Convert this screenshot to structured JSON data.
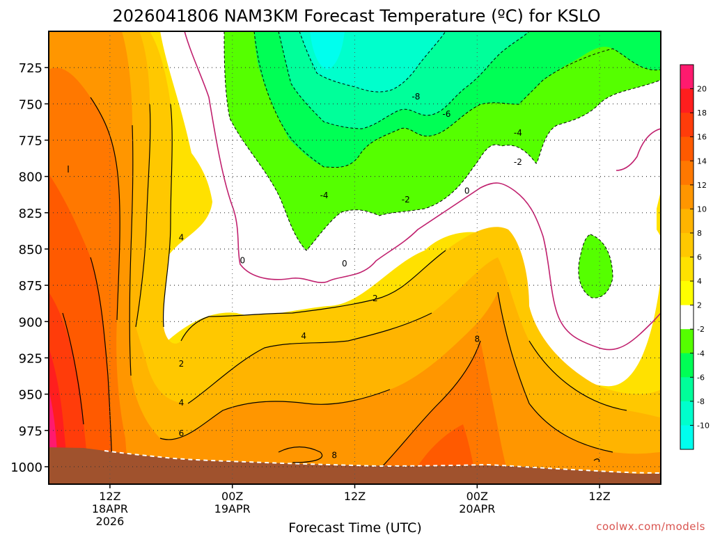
{
  "chart_data": {
    "type": "heatmap",
    "title": "2026041806 NAM3KM Forecast Temperature (ºC) for KSLO",
    "xlabel": "Forecast Time (UTC)",
    "ylabel": "",
    "y_axis": {
      "quantity": "pressure (hPa)",
      "inverted": true,
      "ylim": [
        1012,
        700
      ],
      "ticks": [
        725,
        750,
        775,
        800,
        825,
        850,
        875,
        900,
        925,
        950,
        975,
        1000
      ]
    },
    "x_axis": {
      "quantity": "forecast time (UTC)",
      "xlim": [
        "2026-04-18T06Z",
        "2026-04-20T18Z"
      ],
      "ticks": [
        {
          "time": "2026-04-18T12Z",
          "label": "12Z",
          "sub": [
            "18APR",
            "2026"
          ]
        },
        {
          "time": "2026-04-19T00Z",
          "label": "00Z",
          "sub": [
            "19APR"
          ]
        },
        {
          "time": "2026-04-19T12Z",
          "label": "12Z",
          "sub": []
        },
        {
          "time": "2026-04-20T00Z",
          "label": "00Z",
          "sub": [
            "20APR"
          ]
        },
        {
          "time": "2026-04-20T12Z",
          "label": "12Z",
          "sub": []
        }
      ]
    },
    "grid": true,
    "colorbar": {
      "placement": "right",
      "levels": [
        20,
        18,
        16,
        14,
        12,
        10,
        8,
        6,
        4,
        2,
        -2,
        -4,
        -6,
        -8,
        -10
      ],
      "colors": [
        "#ff1a6e",
        "#ff1e1e",
        "#ff3c0a",
        "#ff5a00",
        "#ff7800",
        "#ff9600",
        "#ffb400",
        "#ffc800",
        "#ffe100",
        "#ffff00",
        "#ffffff",
        "#55ff00",
        "#00ff55",
        "#00ff9a",
        "#00ffcc",
        "#00ffee"
      ]
    },
    "contour_labels": [
      {
        "value": "-8",
        "time": "2026-04-19T18Z",
        "p": 745
      },
      {
        "value": "-6",
        "time": "2026-04-19T21Z",
        "p": 757
      },
      {
        "value": "-4",
        "time": "2026-04-20T04Z",
        "p": 770
      },
      {
        "value": "-2",
        "time": "2026-04-20T04Z",
        "p": 790
      },
      {
        "value": "-4",
        "time": "2026-04-19T09Z",
        "p": 813
      },
      {
        "value": "-2",
        "time": "2026-04-19T17Z",
        "p": 816
      },
      {
        "value": "0",
        "time": "2026-04-19T23Z",
        "p": 810
      },
      {
        "value": "0",
        "time": "2026-04-19T01Z",
        "p": 858
      },
      {
        "value": "0",
        "time": "2026-04-19T11Z",
        "p": 860
      },
      {
        "value": "2",
        "time": "2026-04-19T14Z",
        "p": 884
      },
      {
        "value": "4",
        "time": "2026-04-19T07Z",
        "p": 910
      },
      {
        "value": "8",
        "time": "2026-04-20T00Z",
        "p": 912
      },
      {
        "value": "4",
        "time": "2026-04-18T19Z",
        "p": 842
      },
      {
        "value": "2",
        "time": "2026-04-18T19Z",
        "p": 929
      },
      {
        "value": "4",
        "time": "2026-04-18T19Z",
        "p": 956
      },
      {
        "value": "6",
        "time": "2026-04-18T19Z",
        "p": 977
      },
      {
        "value": "8",
        "time": "2026-04-19T10Z",
        "p": 992
      }
    ],
    "colors": {
      "contour_zero": "#c0206e",
      "ground": "#a0522d"
    }
  },
  "credit": "coolwx.com/models"
}
